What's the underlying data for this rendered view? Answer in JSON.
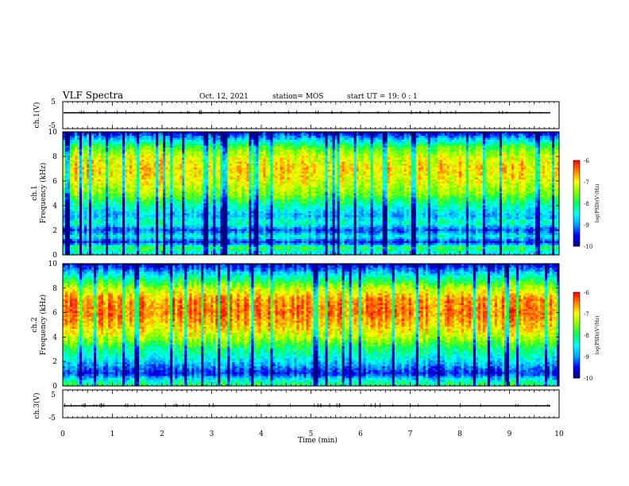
{
  "header": {
    "title": "VLF Spectra",
    "date": "Oct. 12, 2021",
    "station": "station= MOS",
    "start": "start  UT =   19: 0  : 1"
  },
  "colors": {
    "colormap": [
      "#000080",
      "#0000ff",
      "#00a0ff",
      "#00ffff",
      "#00ff60",
      "#7fff00",
      "#ffff00",
      "#ff8000",
      "#ff0000",
      "#ffffff"
    ],
    "trace": "#000000",
    "frame": "#000000"
  },
  "chart_data": [
    {
      "type": "line",
      "ylabel": "ch.1(V)",
      "ylim": [
        -5,
        5
      ],
      "yticks": [
        "5",
        "-5"
      ],
      "xlim": [
        0,
        10
      ],
      "level": 0
    },
    {
      "type": "heatmap",
      "ylabel_top": "ch.1",
      "ylabel": "Frequency (kHz)",
      "ylim": [
        0,
        10
      ],
      "yticks": [
        "0",
        "2",
        "4",
        "6",
        "8",
        "10"
      ],
      "xlim": [
        0,
        10
      ],
      "colorbar": {
        "label": "log(PSD)(V²/Hz)",
        "range": [
          -10,
          -6
        ],
        "ticks": [
          "-6",
          "-7",
          "-8",
          "-9",
          "-10"
        ]
      },
      "profile": [
        {
          "f": 0.2,
          "v": -8.6
        },
        {
          "f": 0.6,
          "v": -8.0
        },
        {
          "f": 1.0,
          "v": -9.6
        },
        {
          "f": 1.5,
          "v": -8.6
        },
        {
          "f": 2.0,
          "v": -9.4
        },
        {
          "f": 2.6,
          "v": -8.4
        },
        {
          "f": 3.2,
          "v": -9.0
        },
        {
          "f": 4.0,
          "v": -8.4
        },
        {
          "f": 5.0,
          "v": -7.6
        },
        {
          "f": 6.0,
          "v": -7.2
        },
        {
          "f": 7.0,
          "v": -7.0
        },
        {
          "f": 8.0,
          "v": -7.3
        },
        {
          "f": 8.8,
          "v": -7.9
        },
        {
          "f": 9.6,
          "v": -9.2
        },
        {
          "f": 10.0,
          "v": -9.8
        }
      ]
    },
    {
      "type": "heatmap",
      "ylabel_top": "ch.2",
      "ylabel": "Frequency (kHz)",
      "ylim": [
        0,
        10
      ],
      "yticks": [
        "0",
        "2",
        "4",
        "6",
        "8",
        "10"
      ],
      "xlim": [
        0,
        10
      ],
      "colorbar": {
        "label": "log(PSD)(V²/Hz)",
        "range": [
          -10,
          -6
        ],
        "ticks": [
          "-6",
          "-7",
          "-8",
          "-9",
          "-10"
        ]
      },
      "profile": [
        {
          "f": 0.2,
          "v": -8.2
        },
        {
          "f": 0.6,
          "v": -8.8
        },
        {
          "f": 1.0,
          "v": -9.6
        },
        {
          "f": 1.5,
          "v": -9.2
        },
        {
          "f": 2.0,
          "v": -8.8
        },
        {
          "f": 3.0,
          "v": -8.2
        },
        {
          "f": 4.0,
          "v": -7.4
        },
        {
          "f": 5.0,
          "v": -6.9
        },
        {
          "f": 6.0,
          "v": -6.6
        },
        {
          "f": 7.0,
          "v": -6.7
        },
        {
          "f": 8.0,
          "v": -7.4
        },
        {
          "f": 8.8,
          "v": -8.3
        },
        {
          "f": 9.5,
          "v": -9.2
        },
        {
          "f": 10.0,
          "v": -9.8
        }
      ]
    },
    {
      "type": "line",
      "ylabel": "ch.3(V)",
      "ylim": [
        -5,
        5
      ],
      "yticks": [
        "5",
        "-5"
      ],
      "xlim": [
        0,
        10
      ],
      "xlabel": "Time (min)",
      "xticks": [
        "0",
        "1",
        "2",
        "3",
        "4",
        "5",
        "6",
        "7",
        "8",
        "9",
        "10"
      ],
      "level": 0
    }
  ]
}
